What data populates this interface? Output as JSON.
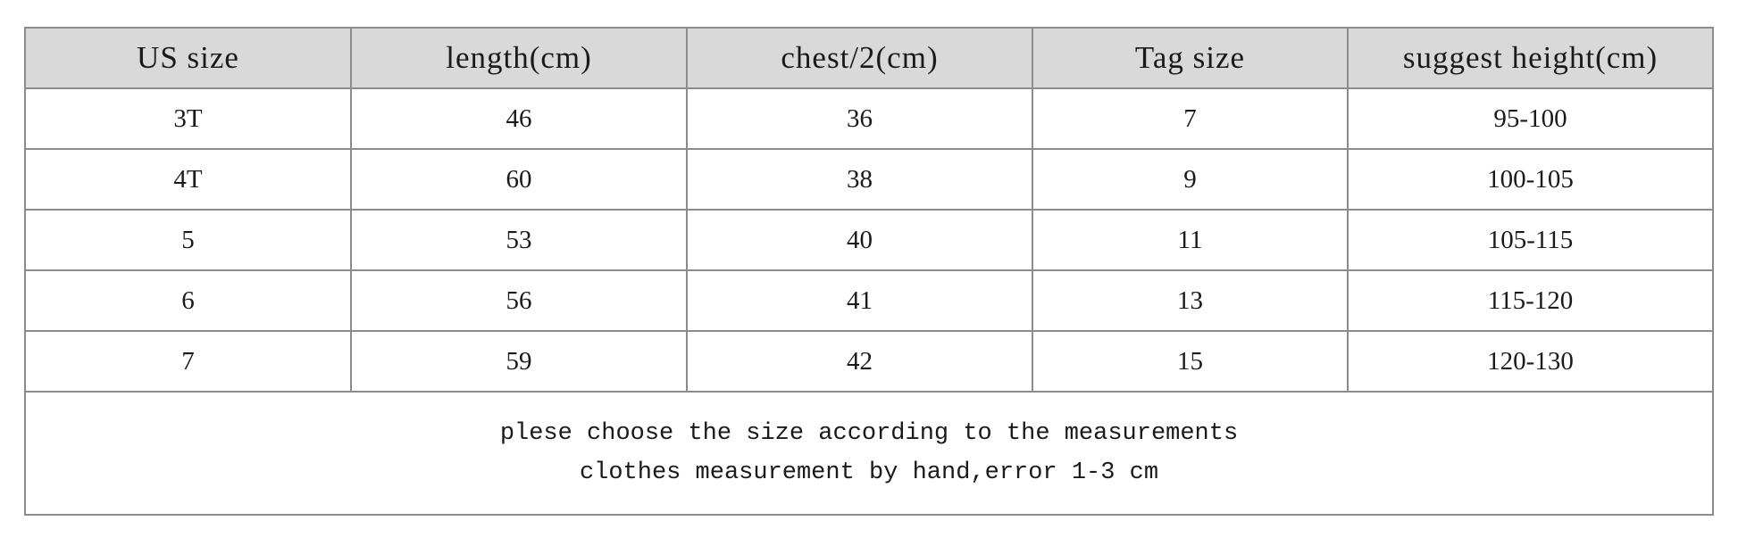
{
  "table": {
    "headers": [
      "US size",
      "length(cm)",
      "chest/2(cm)",
      "Tag size",
      "suggest height(cm)"
    ],
    "rows": [
      [
        "3T",
        "46",
        "36",
        "7",
        "95-100"
      ],
      [
        "4T",
        "60",
        "38",
        "9",
        "100-105"
      ],
      [
        "5",
        "53",
        "40",
        "11",
        "105-115"
      ],
      [
        "6",
        "56",
        "41",
        "13",
        "115-120"
      ],
      [
        "7",
        "59",
        "42",
        "15",
        "120-130"
      ]
    ],
    "notes": [
      "plese choose the size according to the measurements",
      "clothes measurement by hand,error 1-3 cm"
    ]
  },
  "colors": {
    "header_bg": "#d9d9d9",
    "border": "#8c8c8c",
    "text": "#1a1a1a"
  }
}
